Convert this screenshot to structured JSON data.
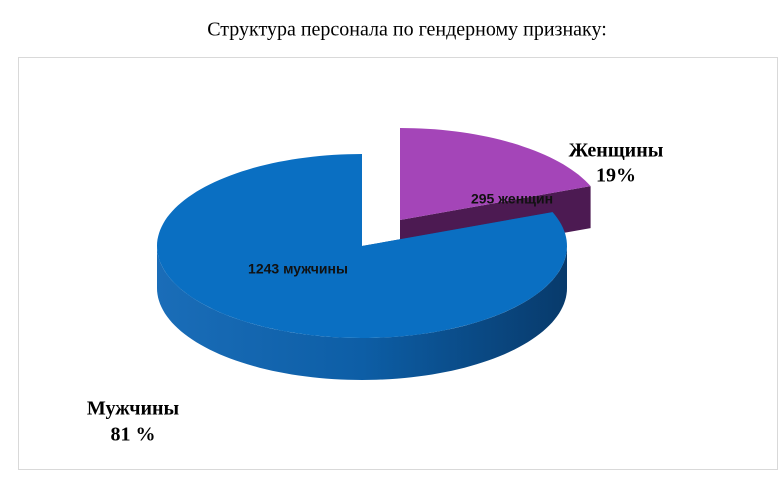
{
  "chart_data": {
    "type": "pie",
    "title": "Структура персонала по гендерному признаку:",
    "categories": [
      "Мужчины",
      "Женщины"
    ],
    "values": [
      81,
      19
    ],
    "value_labels": [
      "81 %",
      "19%"
    ],
    "data_labels": [
      "1243 мужчины",
      "295 женщин"
    ],
    "colors": [
      "#0a6fc2",
      "#a445b8"
    ],
    "side_colors": [
      "#0b4f8f",
      "#4c1a52"
    ]
  }
}
